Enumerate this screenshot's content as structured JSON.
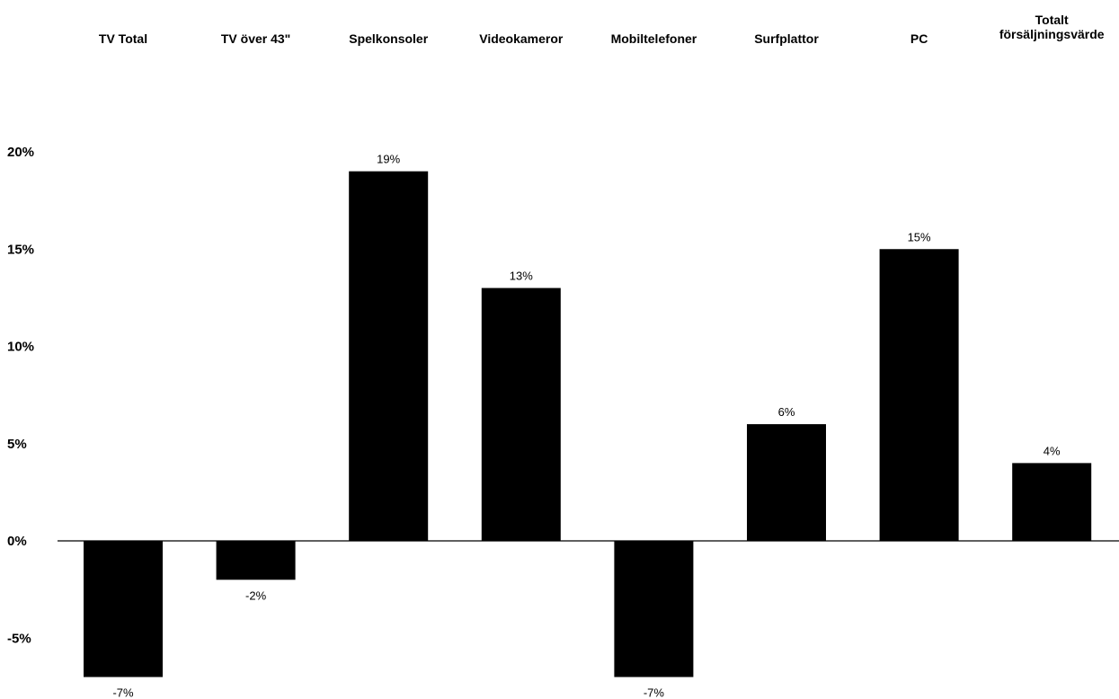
{
  "chart_data": {
    "type": "bar",
    "title": "",
    "xlabel": "",
    "ylabel": "",
    "categories": [
      [
        "TV Total"
      ],
      [
        "TV över 43\""
      ],
      [
        "Spelkonsoler"
      ],
      [
        "Videokameror"
      ],
      [
        "Mobiltelefoner"
      ],
      [
        "Surfplattor"
      ],
      [
        "PC"
      ],
      [
        "Totalt",
        "försäljningsvärde"
      ]
    ],
    "values": [
      -7,
      -2,
      19,
      13,
      -7,
      6,
      15,
      4
    ],
    "data_labels": [
      "-7%",
      "-2%",
      "19%",
      "13%",
      "-7%",
      "6%",
      "15%",
      "4%"
    ],
    "ylim": [
      -7,
      20
    ],
    "yticks": [
      20,
      15,
      10,
      5,
      0,
      -5
    ],
    "ytick_labels": [
      "20%",
      "15%",
      "10%",
      "5%",
      "0%",
      "-5%"
    ],
    "category_labels_position": "top",
    "grid": false,
    "legend": "none",
    "bar_color": "#000000"
  }
}
